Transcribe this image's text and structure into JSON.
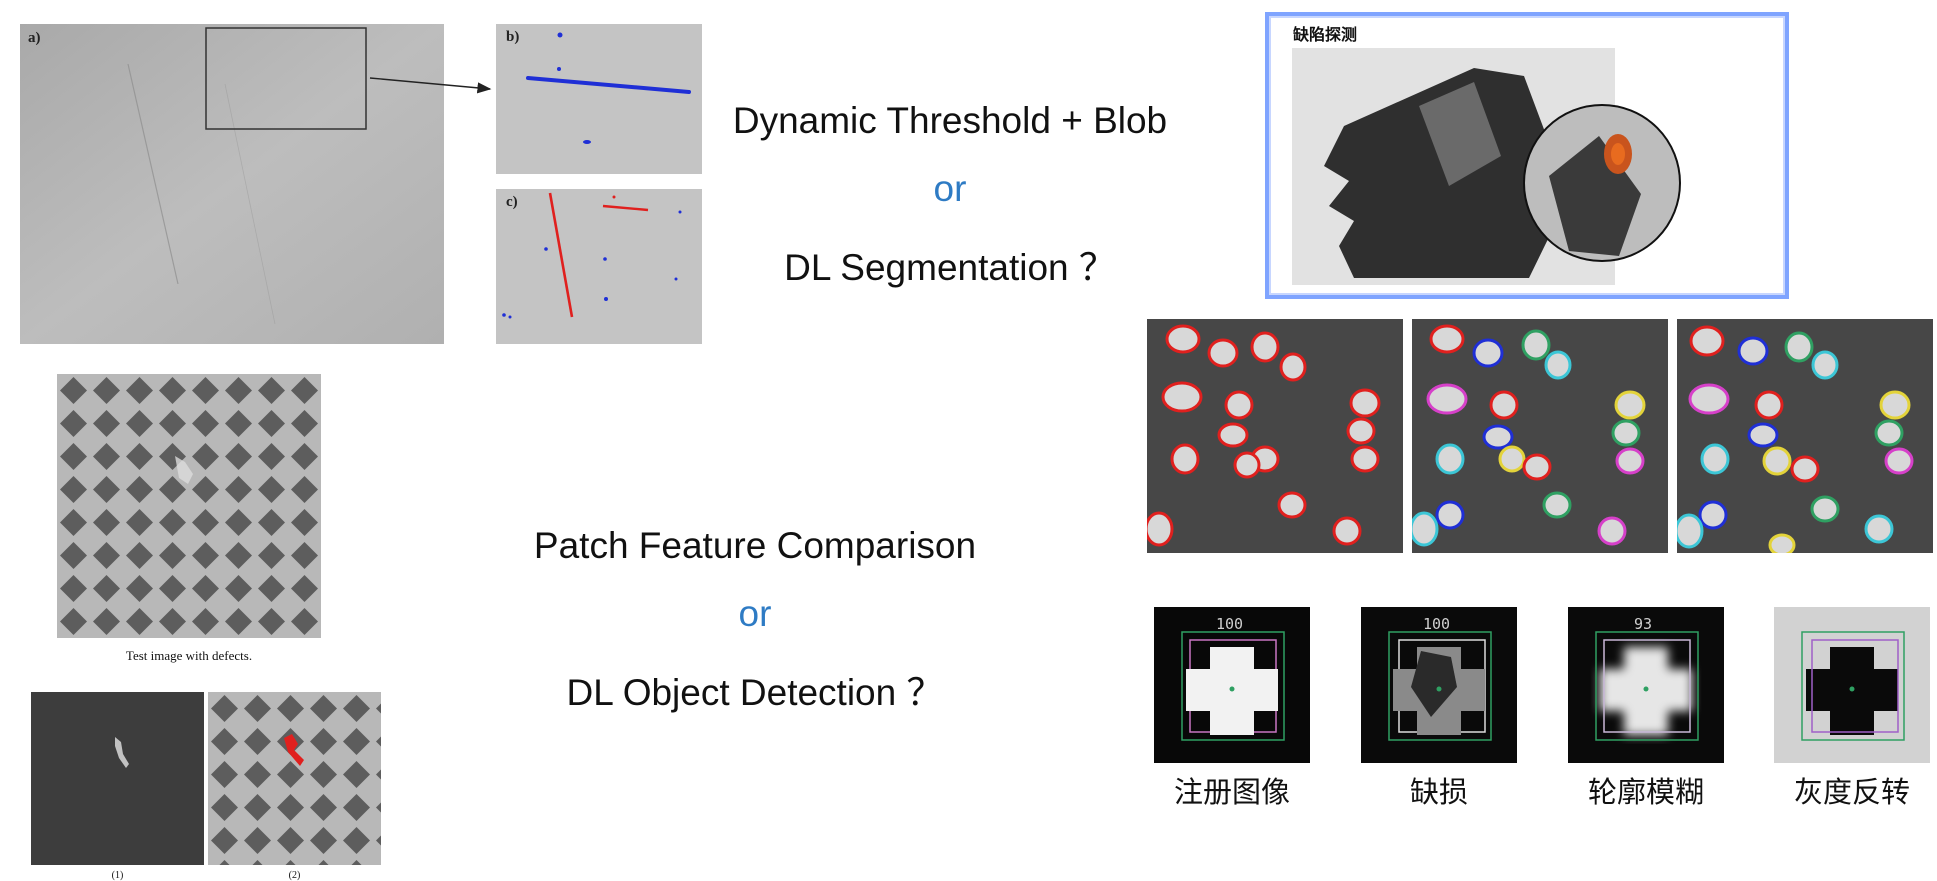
{
  "panels": {
    "a_label": "a)",
    "b_label": "b)",
    "c_label": "c)"
  },
  "headline_top": {
    "line1": "Dynamic Threshold + Blob",
    "or": "or",
    "line2": "DL Segmentation ？"
  },
  "headline_bottom": {
    "line1": "Patch Feature Comparison",
    "or": "or",
    "line2": "DL Object Detection ？"
  },
  "mesh": {
    "caption": "Test image with defects.",
    "sub1": "(1)",
    "sub2": "(2)"
  },
  "screw": {
    "title": "缺陷探测"
  },
  "cross_templates": [
    {
      "caption": "注册图像",
      "score": "100"
    },
    {
      "caption": "缺损",
      "score": "100"
    },
    {
      "caption": "轮廓模糊",
      "score": "93"
    },
    {
      "caption": "灰度反转",
      "score": ""
    }
  ],
  "colors": {
    "accent_or": "#2e7bc4",
    "defect_blue": "#1f2fd6",
    "defect_red": "#e0201e",
    "frame_blue": "#3f6cf2",
    "match_green": "#2fa062"
  }
}
